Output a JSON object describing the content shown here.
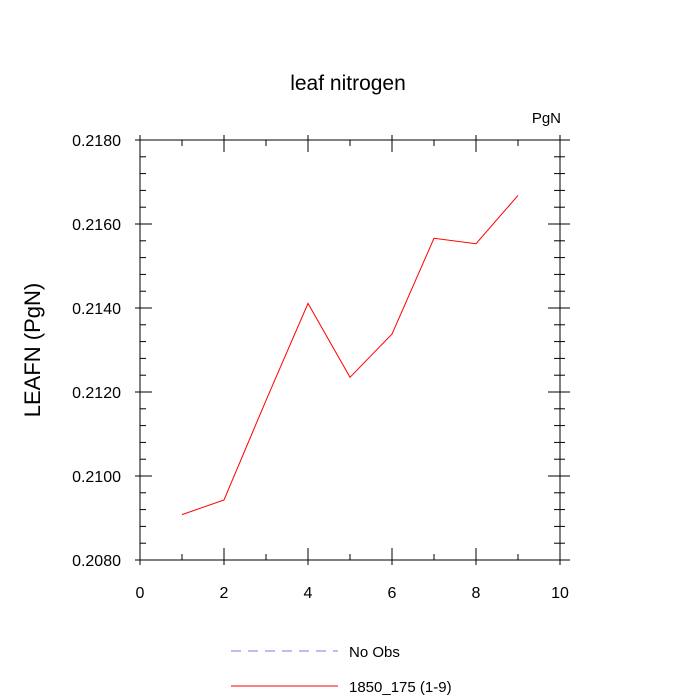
{
  "chart_data": {
    "type": "line",
    "title": "leaf nitrogen",
    "units_label": "PgN",
    "xlabel": "",
    "ylabel": "LEAFN  (PgN)",
    "xlim": [
      0,
      10
    ],
    "ylim": [
      0.208,
      0.218
    ],
    "x_ticks": [
      "0",
      "2",
      "4",
      "6",
      "8",
      "10"
    ],
    "y_ticks": [
      "0.2080",
      "0.2100",
      "0.2120",
      "0.2140",
      "0.2160",
      "0.2180"
    ],
    "grid": false,
    "legend_placement": "bottom-center",
    "series": [
      {
        "name": "No Obs",
        "style": "dashed",
        "color": "#7b7bdc",
        "x": [],
        "y": []
      },
      {
        "name": "1850_175 (1-9)",
        "style": "solid",
        "color": "#ff0000",
        "x": [
          1,
          2,
          3,
          4,
          5,
          6,
          7,
          8,
          9
        ],
        "y": [
          0.20908,
          0.20943,
          0.2118,
          0.21411,
          0.21235,
          0.21338,
          0.21566,
          0.21553,
          0.21668
        ]
      }
    ]
  }
}
